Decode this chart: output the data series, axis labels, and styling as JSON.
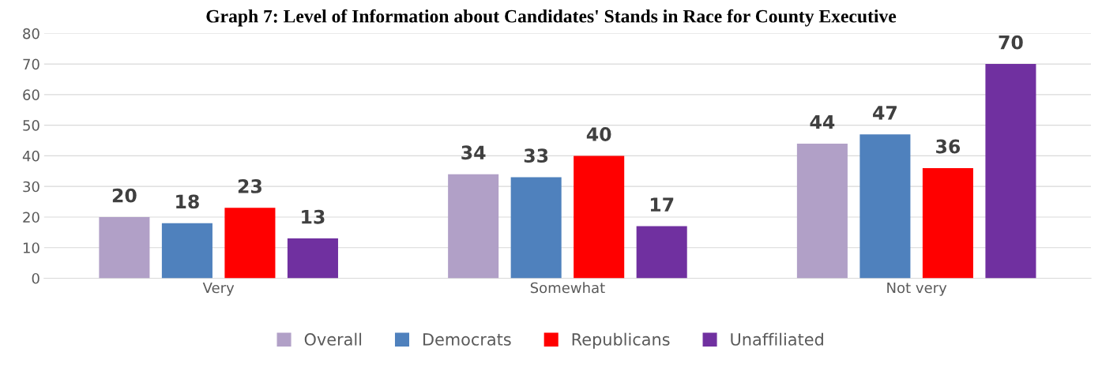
{
  "chart_data": {
    "type": "bar",
    "title": "Graph 7: Level of Information about Candidates' Stands in Race for County Executive",
    "categories": [
      "Very",
      "Somewhat",
      "Not very"
    ],
    "series": [
      {
        "name": "Overall",
        "color": "#b1a0c7",
        "values": [
          20,
          34,
          44
        ]
      },
      {
        "name": "Democrats",
        "color": "#4f81bd",
        "values": [
          18,
          33,
          47
        ]
      },
      {
        "name": "Republicans",
        "color": "#ff0000",
        "values": [
          23,
          40,
          36
        ]
      },
      {
        "name": "Unaffiliated",
        "color": "#7030a0",
        "values": [
          13,
          17,
          70
        ]
      }
    ],
    "ylim": [
      0,
      80
    ],
    "yticks": [
      0,
      10,
      20,
      30,
      40,
      50,
      60,
      70,
      80
    ],
    "grid": "y",
    "legend": "bottom",
    "data_labels": true
  }
}
